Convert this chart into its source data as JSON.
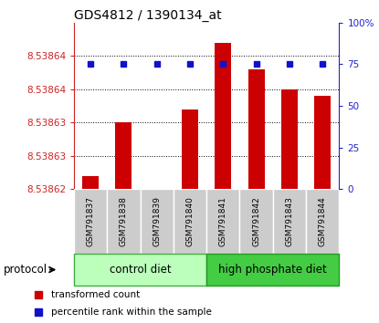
{
  "title": "GDS4812 / 1390134_at",
  "samples": [
    "GSM791837",
    "GSM791838",
    "GSM791839",
    "GSM791840",
    "GSM791841",
    "GSM791842",
    "GSM791843",
    "GSM791844"
  ],
  "bar_values": [
    8.538622,
    8.53863,
    8.53862,
    8.538632,
    8.538642,
    8.538638,
    8.538635,
    8.538634
  ],
  "percentile_values": [
    75,
    75,
    75,
    75,
    75,
    75,
    75,
    75
  ],
  "y_min": 8.53862,
  "y_max": 8.538645,
  "left_ticks": [
    8.53862,
    8.538625,
    8.53863,
    8.538635,
    8.53864
  ],
  "left_tick_labels": [
    "8.53862",
    "8.53863",
    "8.53863",
    "8.53864",
    "8.53864"
  ],
  "right_y_ticks": [
    0,
    25,
    50,
    75,
    100
  ],
  "right_y_tick_labels": [
    "0",
    "25",
    "50",
    "75",
    "100%"
  ],
  "bar_color": "#cc0000",
  "dot_color": "#1111cc",
  "left_tick_color": "#cc2222",
  "right_tick_color": "#2222cc",
  "groups": [
    {
      "label": "control diet",
      "start": 0,
      "end": 4,
      "color": "#bbffbb",
      "edge_color": "#44aa44"
    },
    {
      "label": "high phosphate diet",
      "start": 4,
      "end": 8,
      "color": "#44cc44",
      "edge_color": "#229922"
    }
  ],
  "protocol_label": "protocol",
  "legend_items": [
    {
      "label": "transformed count",
      "color": "#cc0000"
    },
    {
      "label": "percentile rank within the sample",
      "color": "#1111cc"
    }
  ],
  "bg_color": "#ffffff",
  "sample_box_color": "#cccccc",
  "sample_box_edge": "#ffffff",
  "title_fontsize": 10,
  "tick_fontsize": 7.5,
  "sample_fontsize": 6.5,
  "legend_fontsize": 7.5,
  "protocol_fontsize": 8.5
}
